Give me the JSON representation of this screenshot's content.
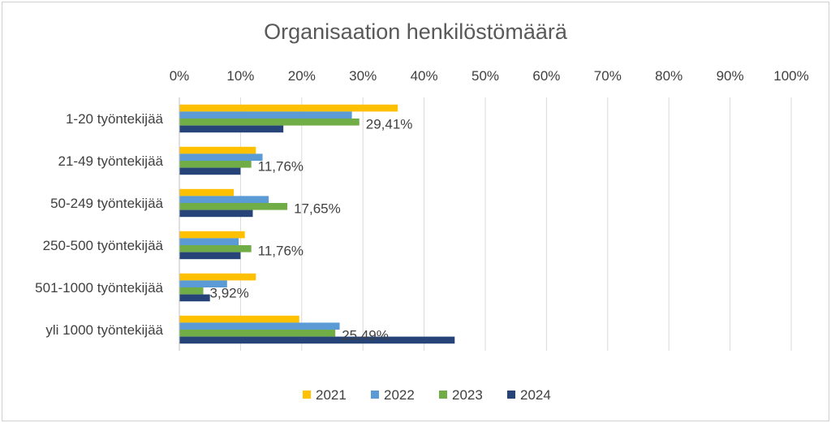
{
  "chart_data": {
    "type": "bar",
    "orientation": "horizontal",
    "title": "Organisaation henkilöstömäärä",
    "x_axis_position": "top",
    "xlim": [
      0,
      100
    ],
    "x_ticks": [
      "0%",
      "10%",
      "20%",
      "30%",
      "40%",
      "50%",
      "60%",
      "70%",
      "80%",
      "90%",
      "100%"
    ],
    "grid": true,
    "legend_position": "bottom",
    "categories": [
      "1-20 työntekijää",
      "21-49 työntekijää",
      "50-249 työntekijää",
      "250-500 työntekijää",
      "501-1000 työntekijää",
      "yli 1000 työntekijää"
    ],
    "series": [
      {
        "name": "2021",
        "color": "#FFC000",
        "values": [
          35.7,
          12.5,
          8.9,
          10.7,
          12.5,
          19.6
        ]
      },
      {
        "name": "2022",
        "color": "#5B9BD5",
        "values": [
          28.2,
          13.6,
          14.6,
          9.7,
          7.8,
          26.2
        ]
      },
      {
        "name": "2023",
        "color": "#70AD47",
        "values": [
          29.41,
          11.76,
          17.65,
          11.76,
          3.92,
          25.49
        ]
      },
      {
        "name": "2024",
        "color": "#264478",
        "values": [
          17.0,
          10.0,
          12.0,
          10.0,
          5.0,
          45.0
        ]
      }
    ],
    "data_labels": {
      "series": "2023",
      "labels": [
        "29,41%",
        "11,76%",
        "17,65%",
        "11,76%",
        "3,92%",
        "25,49%"
      ]
    }
  }
}
